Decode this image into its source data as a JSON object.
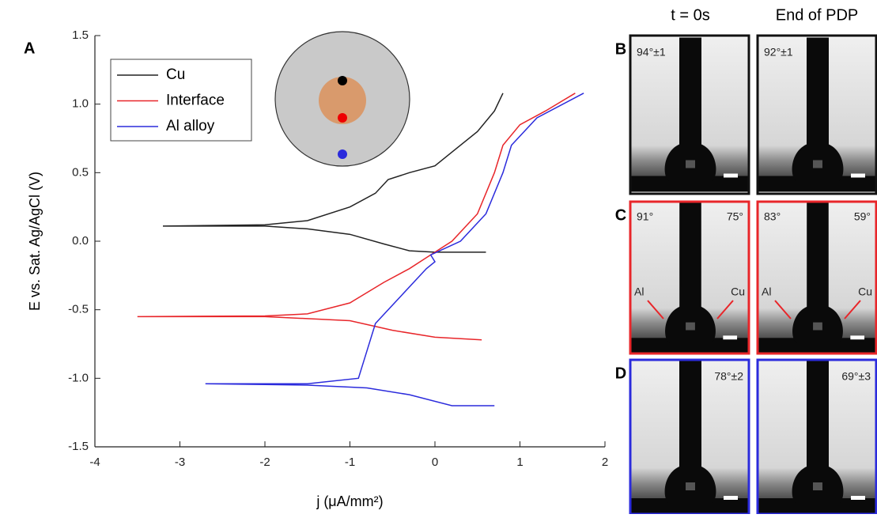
{
  "chart_data": {
    "type": "line",
    "panel_label": "A",
    "xlabel": "j (μA/mm²)",
    "ylabel": "E vs. Sat. Ag/AgCl (V)",
    "xlim": [
      -4,
      2
    ],
    "xticks": [
      -4,
      -3,
      -2,
      -1,
      0,
      1,
      2
    ],
    "ylim": [
      -1.5,
      1.5
    ],
    "yticks": [
      -1.5,
      {
        "value": -1,
        "label": "-1.0"
      },
      -0.5,
      {
        "value": 0,
        "label": "0.0"
      },
      0.5,
      {
        "value": 1,
        "label": "1.0"
      },
      1.5
    ],
    "legend": "upper left",
    "series": [
      {
        "name": "Cu",
        "color": "#222222",
        "x": [
          0.6,
          0.0,
          -0.3,
          -0.6,
          -1.0,
          -1.5,
          -2.0,
          -3.2,
          -2.0,
          -1.5,
          -1.0,
          -0.7,
          -0.55,
          -0.3,
          0.0,
          0.2,
          0.5,
          0.7,
          0.8
        ],
        "values": [
          -0.08,
          -0.08,
          -0.07,
          -0.02,
          0.05,
          0.09,
          0.11,
          0.11,
          0.12,
          0.15,
          0.25,
          0.35,
          0.45,
          0.5,
          0.55,
          0.65,
          0.8,
          0.95,
          1.08
        ]
      },
      {
        "name": "Interface",
        "color": "#e8262a",
        "x": [
          0.55,
          0.0,
          -0.5,
          -1.0,
          -2.0,
          -3.5,
          -2.0,
          -1.5,
          -1.0,
          -0.6,
          -0.3,
          -0.1,
          0.2,
          0.5,
          0.7,
          0.8,
          1.0,
          1.3,
          1.65
        ],
        "values": [
          -0.72,
          -0.7,
          -0.65,
          -0.58,
          -0.55,
          -0.55,
          -0.545,
          -0.53,
          -0.45,
          -0.3,
          -0.2,
          -0.12,
          0.0,
          0.2,
          0.5,
          0.7,
          0.85,
          0.95,
          1.08
        ]
      },
      {
        "name": "Al alloy",
        "color": "#2b2bdc",
        "x": [
          0.7,
          0.2,
          -0.3,
          -0.8,
          -1.5,
          -2.7,
          -1.5,
          -0.9,
          -0.8,
          -0.7,
          -0.4,
          -0.1,
          0.0,
          -0.05,
          0.3,
          0.6,
          0.8,
          0.9,
          1.2,
          1.75
        ],
        "values": [
          -1.2,
          -1.2,
          -1.12,
          -1.07,
          -1.05,
          -1.04,
          -1.04,
          -1.0,
          -0.8,
          -0.6,
          -0.4,
          -0.2,
          -0.15,
          -0.1,
          0.0,
          0.2,
          0.5,
          0.7,
          0.9,
          1.08
        ]
      }
    ]
  },
  "panels": {
    "col_headers": [
      "t = 0s",
      "End of PDP"
    ],
    "rows": [
      {
        "label": "B",
        "texts": [
          [
            "94°±1"
          ],
          [
            "92°±1"
          ]
        ]
      },
      {
        "label": "C",
        "texts": [
          [
            "91°",
            "75°",
            "Al",
            "Cu"
          ],
          [
            "83°",
            "59°",
            "Al",
            "Cu"
          ]
        ]
      },
      {
        "label": "D",
        "texts": [
          [
            "78°±2"
          ],
          [
            "69°±3"
          ]
        ]
      }
    ]
  }
}
